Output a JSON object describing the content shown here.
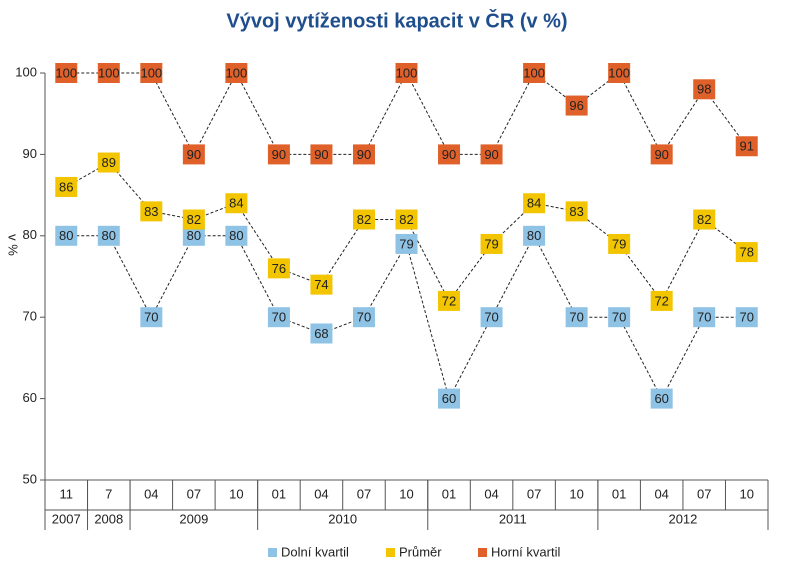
{
  "chart_data": {
    "type": "line",
    "title": "Vývoj vytíženosti kapacit v ČR (v %)",
    "y_label": "v %",
    "categories": [
      "11",
      "7",
      "04",
      "07",
      "10",
      "01",
      "04",
      "07",
      "10",
      "01",
      "04",
      "07",
      "10",
      "01",
      "04",
      "07",
      "10"
    ],
    "x_groups": [
      {
        "label": "2007",
        "count": 1
      },
      {
        "label": "2008",
        "count": 1
      },
      {
        "label": "2009",
        "count": 3
      },
      {
        "label": "2010",
        "count": 4
      },
      {
        "label": "2011",
        "count": 4
      },
      {
        "label": "2012",
        "count": 4
      }
    ],
    "series": [
      {
        "name": "Dolní kvartil",
        "color": "#8fc3e6",
        "values": [
          80,
          80,
          70,
          80,
          80,
          70,
          68,
          70,
          79,
          60,
          70,
          80,
          70,
          70,
          60,
          70,
          70
        ]
      },
      {
        "name": "Průměr",
        "color": "#f2c500",
        "values": [
          86,
          89,
          83,
          82,
          84,
          76,
          74,
          82,
          82,
          72,
          79,
          84,
          83,
          79,
          72,
          82,
          78
        ]
      },
      {
        "name": "Horní kvartil",
        "color": "#e0602a",
        "values": [
          100,
          100,
          100,
          90,
          100,
          90,
          90,
          90,
          100,
          90,
          90,
          100,
          96,
          100,
          90,
          98,
          91
        ]
      }
    ],
    "ylim": [
      50,
      100
    ],
    "yticks": [
      50,
      60,
      70,
      80,
      90,
      100
    ],
    "legend": "bottom"
  }
}
